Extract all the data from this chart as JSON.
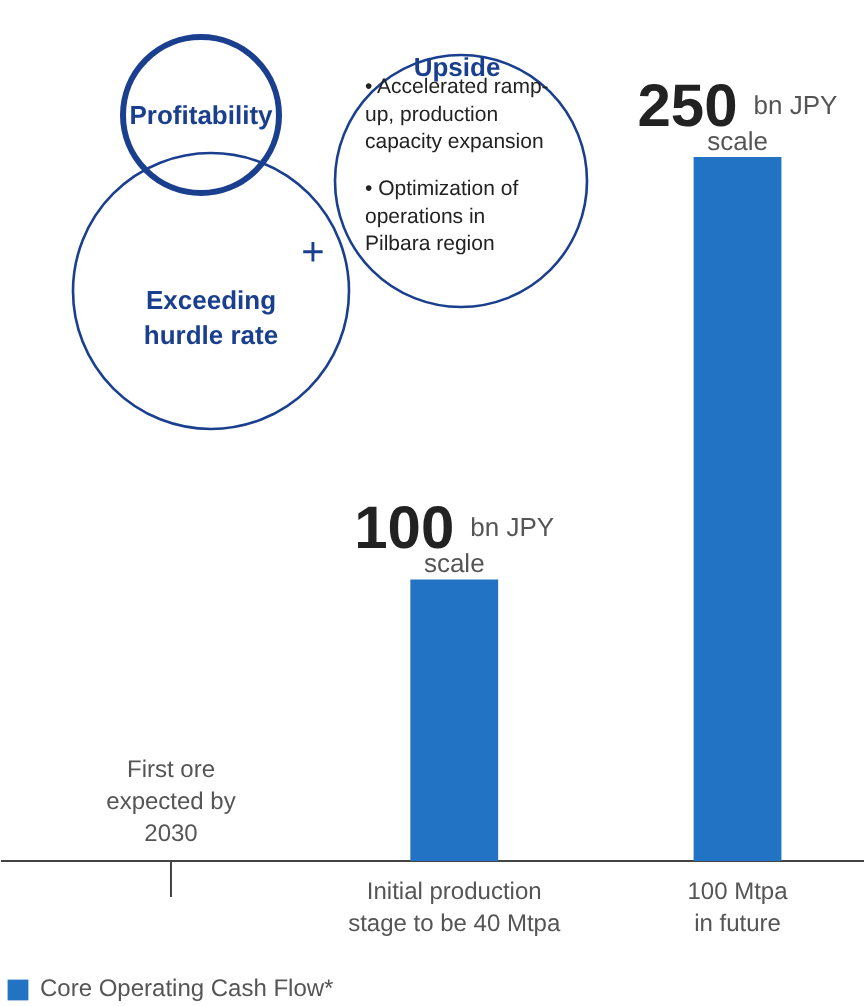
{
  "chart_data": {
    "type": "bar",
    "categories": [
      null,
      "Initial production stage to be 40 Mtpa",
      "100 Mtpa in future"
    ],
    "series": [
      {
        "name": "Core Operating Cash Flow*",
        "color": "#2273c4",
        "values": [
          null,
          100,
          250
        ],
        "value_labels": [
          null,
          "100 bn JPY scale",
          "250 bn JPY scale"
        ]
      }
    ],
    "annotations": [
      "Profitability",
      "Upside",
      "• Accelerated ramp-up, production capacity expansion",
      "• Optimization of operations in Pilbara region",
      "+",
      "Exceeding hurdle rate",
      "First ore expected by 2030"
    ],
    "legend": "bottom left",
    "grid": false
  }
}
